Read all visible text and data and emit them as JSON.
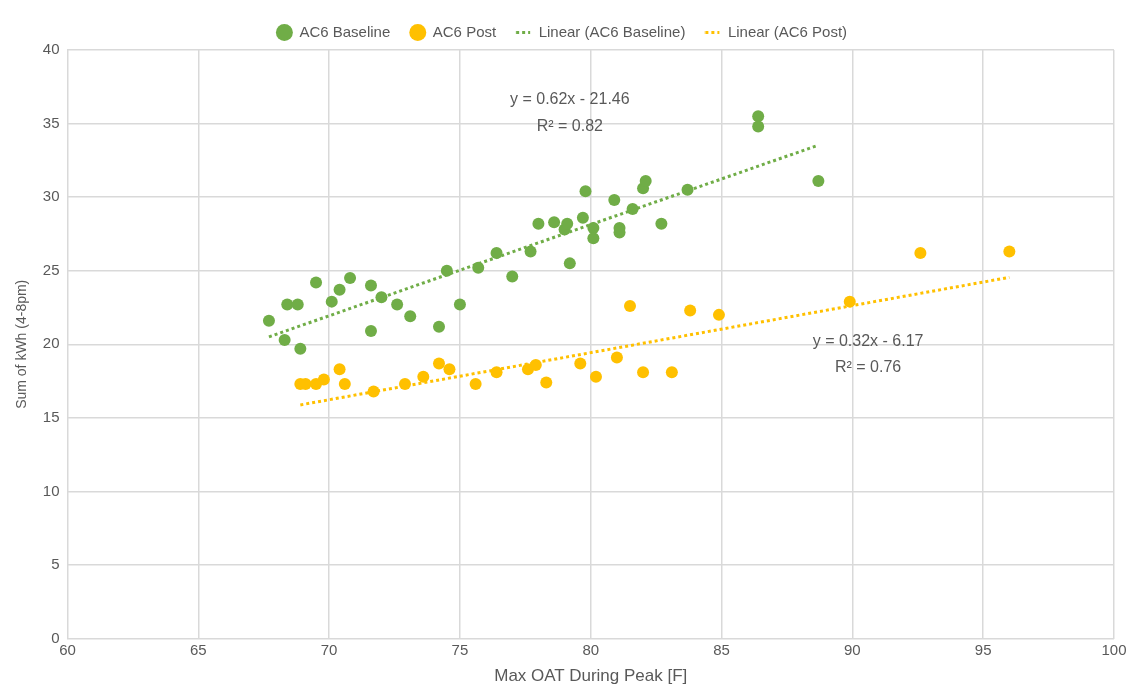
{
  "chart_data": {
    "type": "scatter",
    "xlabel": "Max OAT During Peak [F]",
    "ylabel": "Sum of kWh (4-8pm)",
    "xlim": [
      60,
      100
    ],
    "xticks": [
      60,
      65,
      70,
      75,
      80,
      85,
      90,
      95,
      100
    ],
    "ylim": [
      0,
      40
    ],
    "yticks": [
      0,
      5,
      10,
      15,
      20,
      25,
      30,
      35,
      40
    ],
    "grid": true,
    "legend": "top",
    "marker": "circle",
    "series": [
      {
        "name": "AC6 Baseline",
        "color": "#70ad47",
        "x": [
          67.7,
          68.3,
          68.4,
          68.8,
          68.9,
          69.5,
          70.1,
          70.4,
          70.8,
          71.6,
          71.6,
          72.0,
          72.6,
          73.1,
          74.2,
          74.5,
          75.0,
          75.7,
          76.4,
          77.0,
          77.7,
          78.0,
          78.6,
          79.0,
          79.1,
          79.2,
          79.7,
          79.8,
          80.1,
          80.1,
          80.9,
          81.1,
          81.1,
          81.6,
          82.0,
          82.1,
          82.7,
          83.7,
          86.4,
          86.4,
          88.7
        ],
        "values": [
          21.6,
          20.3,
          22.7,
          22.7,
          19.7,
          24.2,
          22.9,
          23.7,
          24.5,
          24.0,
          20.9,
          23.2,
          22.7,
          21.9,
          21.2,
          25.0,
          22.7,
          25.2,
          26.2,
          24.6,
          26.3,
          28.2,
          28.3,
          27.8,
          28.2,
          25.5,
          28.6,
          30.4,
          27.9,
          27.2,
          29.8,
          27.9,
          27.6,
          29.2,
          30.6,
          31.1,
          28.2,
          30.5,
          35.5,
          34.8,
          31.1
        ]
      },
      {
        "name": "AC6 Post",
        "color": "#ffc000",
        "x": [
          68.9,
          69.1,
          69.5,
          69.8,
          70.4,
          70.6,
          71.7,
          72.9,
          73.6,
          74.2,
          74.6,
          75.6,
          76.4,
          77.6,
          77.9,
          78.3,
          79.6,
          80.2,
          81.0,
          81.5,
          82.0,
          83.1,
          83.8,
          84.9,
          89.9,
          92.6,
          96.0
        ],
        "values": [
          17.3,
          17.3,
          17.3,
          17.6,
          18.3,
          17.3,
          16.8,
          17.3,
          17.8,
          18.7,
          18.3,
          17.3,
          18.1,
          18.3,
          18.6,
          17.4,
          18.7,
          17.8,
          19.1,
          22.6,
          18.1,
          18.1,
          22.3,
          22.0,
          22.9,
          26.2,
          26.3
        ]
      },
      {
        "name": "Linear (AC6 Baseline)",
        "type": "line",
        "line_style": "dotted",
        "marker": "none",
        "color": "#70ad47",
        "x": [
          67.7,
          88.7
        ],
        "values": [
          20.51,
          33.53
        ]
      },
      {
        "name": "Linear (AC6 Post)",
        "type": "line",
        "line_style": "dotted",
        "marker": "none",
        "color": "#ffc000",
        "x": [
          68.9,
          96.0
        ],
        "values": [
          15.88,
          24.55
        ]
      }
    ],
    "annotations": [
      "y = 0.62x - 21.46",
      "R² = 0.82",
      "y = 0.32x - 6.17",
      "R² = 0.76"
    ]
  }
}
